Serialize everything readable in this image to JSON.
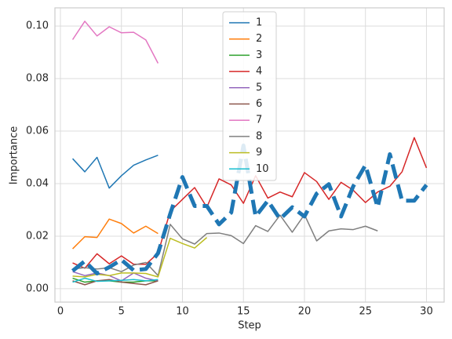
{
  "chart_data": {
    "type": "line",
    "x_label": "Step",
    "y_label": "Importance",
    "x": [
      1,
      2,
      3,
      4,
      5,
      6,
      7,
      8,
      9,
      10,
      11,
      12,
      13,
      14,
      15,
      16,
      17,
      18,
      19,
      20,
      21,
      22,
      23,
      24,
      25,
      26,
      27,
      28,
      29,
      30
    ],
    "xlim": [
      -0.45,
      31.45
    ],
    "xticks": [
      0,
      5,
      10,
      15,
      20,
      25,
      30
    ],
    "ylim": [
      -0.0051,
      0.1069
    ],
    "yticks": [
      {
        "value": 0,
        "label": "0.00"
      },
      {
        "value": 0.02,
        "label": "0.02"
      },
      {
        "value": 0.04,
        "label": "0.04"
      },
      {
        "value": 0.06,
        "label": "0.06"
      },
      {
        "value": 0.08,
        "label": "0.08"
      },
      {
        "value": 0.1,
        "label": "0.10"
      }
    ],
    "grid": true,
    "legend": "upper center",
    "series": [
      {
        "name": "1",
        "color": "#1f77b4",
        "values": [
          0.0495,
          0.0445,
          0.05,
          0.0383,
          0.043,
          0.047,
          0.049,
          0.0508,
          null,
          null,
          null,
          null,
          null,
          null,
          null,
          null,
          null,
          null,
          null,
          null,
          null,
          null,
          null,
          null,
          null,
          null,
          null,
          null,
          null,
          null
        ]
      },
      {
        "name": "2",
        "color": "#ff7f0e",
        "values": [
          0.0152,
          0.0198,
          0.0195,
          0.0265,
          0.0248,
          0.0212,
          0.0238,
          0.021,
          null,
          null,
          null,
          null,
          null,
          null,
          null,
          null,
          null,
          null,
          null,
          null,
          null,
          null,
          null,
          null,
          null,
          null,
          null,
          null,
          null,
          null
        ]
      },
      {
        "name": "3",
        "color": "#2ca02c",
        "values": [
          0.004,
          0.0025,
          0.003,
          0.003,
          0.0025,
          0.0025,
          0.003,
          0.003,
          null,
          null,
          null,
          null,
          null,
          null,
          null,
          null,
          null,
          null,
          null,
          null,
          null,
          null,
          null,
          null,
          null,
          null,
          null,
          null,
          null,
          null
        ]
      },
      {
        "name": "4",
        "color": "#d62728",
        "values": [
          0.0098,
          0.0078,
          0.0133,
          0.0095,
          0.0125,
          0.0093,
          0.0093,
          0.0135,
          0.0295,
          0.034,
          0.0385,
          0.031,
          0.0418,
          0.0395,
          0.0325,
          0.043,
          0.0345,
          0.0368,
          0.035,
          0.0442,
          0.0408,
          0.034,
          0.0405,
          0.0375,
          0.0328,
          0.0368,
          0.039,
          0.0445,
          0.0575,
          0.046
        ]
      },
      {
        "name": "5",
        "color": "#9467bd",
        "values": [
          0.0065,
          0.005,
          0.006,
          0.005,
          0.003,
          0.006,
          0.004,
          0.003,
          null,
          null,
          null,
          null,
          null,
          null,
          null,
          null,
          null,
          null,
          null,
          null,
          null,
          null,
          null,
          null,
          null,
          null,
          null,
          null,
          null,
          null
        ]
      },
      {
        "name": "6",
        "color": "#8c564b",
        "values": [
          0.003,
          0.0015,
          0.003,
          0.0035,
          0.0025,
          0.002,
          0.0015,
          0.003,
          null,
          null,
          null,
          null,
          null,
          null,
          null,
          null,
          null,
          null,
          null,
          null,
          null,
          null,
          null,
          null,
          null,
          null,
          null,
          null,
          null,
          null
        ]
      },
      {
        "name": "7",
        "color": "#e377c2",
        "values": [
          0.0948,
          0.1018,
          0.0962,
          0.0997,
          0.0974,
          0.0976,
          0.0947,
          0.0858,
          null,
          null,
          null,
          null,
          null,
          null,
          null,
          null,
          null,
          null,
          null,
          null,
          null,
          null,
          null,
          null,
          null,
          null,
          null,
          null,
          null,
          null
        ]
      },
      {
        "name": "8",
        "color": "#7f7f7f",
        "values": [
          0.0075,
          0.008,
          0.0075,
          0.008,
          0.0065,
          0.009,
          0.01,
          0.005,
          0.0245,
          0.019,
          0.017,
          0.021,
          0.0212,
          0.0202,
          0.0172,
          0.024,
          0.0218,
          0.028,
          0.0215,
          0.0282,
          0.0182,
          0.022,
          0.0228,
          0.0225,
          0.0238,
          0.022,
          null,
          null,
          null,
          null
        ]
      },
      {
        "name": "9",
        "color": "#bcbd22",
        "values": [
          0.0048,
          0.0045,
          0.0055,
          0.005,
          0.006,
          0.006,
          0.0058,
          0.0045,
          0.0192,
          0.0172,
          0.0155,
          0.0195,
          null,
          null,
          null,
          null,
          null,
          null,
          null,
          null,
          null,
          null,
          null,
          null,
          null,
          null,
          null,
          null,
          null,
          null
        ]
      },
      {
        "name": "10",
        "color": "#17becf",
        "values": [
          0.0025,
          0.004,
          0.0028,
          0.003,
          0.0032,
          0.0035,
          0.003,
          0.0035,
          null,
          null,
          null,
          null,
          null,
          null,
          null,
          null,
          null,
          null,
          null,
          null,
          null,
          null,
          null,
          null,
          null,
          null,
          null,
          null,
          null,
          null
        ]
      },
      {
        "color": "#1f77b4",
        "style": "dashed",
        "linewidth": 5,
        "values": [
          0.0068,
          0.0105,
          0.0058,
          0.0082,
          0.011,
          0.007,
          0.0075,
          0.0135,
          0.0285,
          0.0425,
          0.0315,
          0.0315,
          0.0245,
          0.029,
          0.0545,
          0.0275,
          0.0335,
          0.0265,
          0.031,
          0.0275,
          0.0362,
          0.0398,
          0.0275,
          0.039,
          0.047,
          0.031,
          0.0512,
          0.0335,
          0.0335,
          0.0395
        ]
      }
    ]
  }
}
